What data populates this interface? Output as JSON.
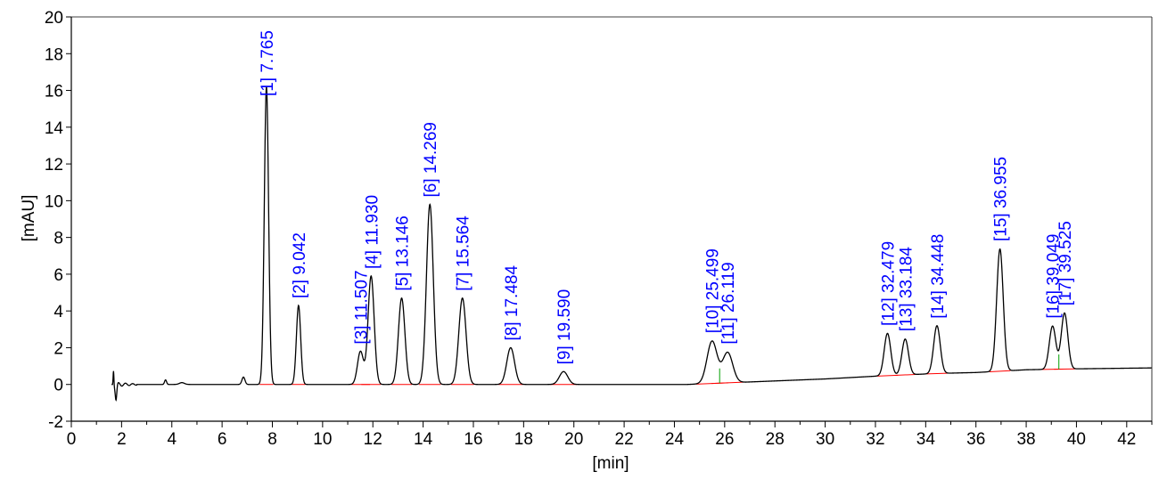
{
  "chart_data": {
    "type": "line",
    "title": "",
    "xlabel": "[min]",
    "ylabel": "[mAU]",
    "xlim": [
      0,
      43
    ],
    "ylim": [
      -2,
      20
    ],
    "x_ticks": [
      "0",
      "2",
      "4",
      "6",
      "8",
      "10",
      "12",
      "14",
      "16",
      "18",
      "20",
      "22",
      "24",
      "26",
      "28",
      "30",
      "32",
      "34",
      "36",
      "38",
      "40",
      "42"
    ],
    "y_ticks": [
      "-2",
      "0",
      "2",
      "4",
      "6",
      "8",
      "10",
      "12",
      "14",
      "16",
      "18",
      "20"
    ],
    "grid": false,
    "colors": {
      "trace": "#000000",
      "peak_label": "#0000ff",
      "baseline": "#ff0000",
      "axis": "#000000"
    },
    "peaks": [
      {
        "id": 1,
        "label": "[1]  7.765",
        "rt": 7.765,
        "height": 16.2,
        "base": 0.0
      },
      {
        "id": 2,
        "label": "[2]  9.042",
        "rt": 9.042,
        "height": 4.3,
        "base": 0.0
      },
      {
        "id": 3,
        "label": "[3]  11.507",
        "rt": 11.507,
        "height": 1.8,
        "base": 0.0
      },
      {
        "id": 4,
        "label": "[4]  11.930",
        "rt": 11.93,
        "height": 5.9,
        "base": 0.0
      },
      {
        "id": 5,
        "label": "[5]  13.146",
        "rt": 13.146,
        "height": 4.7,
        "base": 0.0
      },
      {
        "id": 6,
        "label": "[6]  14.269",
        "rt": 14.269,
        "height": 9.8,
        "base": 0.0
      },
      {
        "id": 7,
        "label": "[7]  15.564",
        "rt": 15.564,
        "height": 4.7,
        "base": 0.0
      },
      {
        "id": 8,
        "label": "[8]  17.484",
        "rt": 17.484,
        "height": 2.0,
        "base": 0.0
      },
      {
        "id": 9,
        "label": "[9]  19.590",
        "rt": 19.59,
        "height": 0.7,
        "base": 0.0
      },
      {
        "id": 10,
        "label": "[10]  25.499",
        "rt": 25.499,
        "height": 2.4,
        "base": 0.1
      },
      {
        "id": 11,
        "label": "[11]  26.119",
        "rt": 26.119,
        "height": 1.8,
        "base": 0.15
      },
      {
        "id": 12,
        "label": "[12]  32.479",
        "rt": 32.479,
        "height": 2.8,
        "base": 0.5
      },
      {
        "id": 13,
        "label": "[13]  33.184",
        "rt": 33.184,
        "height": 2.5,
        "base": 0.55
      },
      {
        "id": 14,
        "label": "[14]  34.448",
        "rt": 34.448,
        "height": 3.2,
        "base": 0.6
      },
      {
        "id": 15,
        "label": "[15]  36.955",
        "rt": 36.955,
        "height": 7.4,
        "base": 0.75
      },
      {
        "id": 16,
        "label": "[16]  39.049",
        "rt": 39.049,
        "height": 3.2,
        "base": 0.85
      },
      {
        "id": 17,
        "label": "[17]  39.525",
        "rt": 39.525,
        "height": 3.9,
        "base": 0.85
      }
    ],
    "baseline_drift": [
      [
        0,
        0
      ],
      [
        24.5,
        0
      ],
      [
        30,
        0.3
      ],
      [
        32,
        0.45
      ],
      [
        34.5,
        0.6
      ],
      [
        36,
        0.65
      ],
      [
        38,
        0.8
      ],
      [
        40,
        0.85
      ],
      [
        43,
        0.9
      ]
    ]
  }
}
